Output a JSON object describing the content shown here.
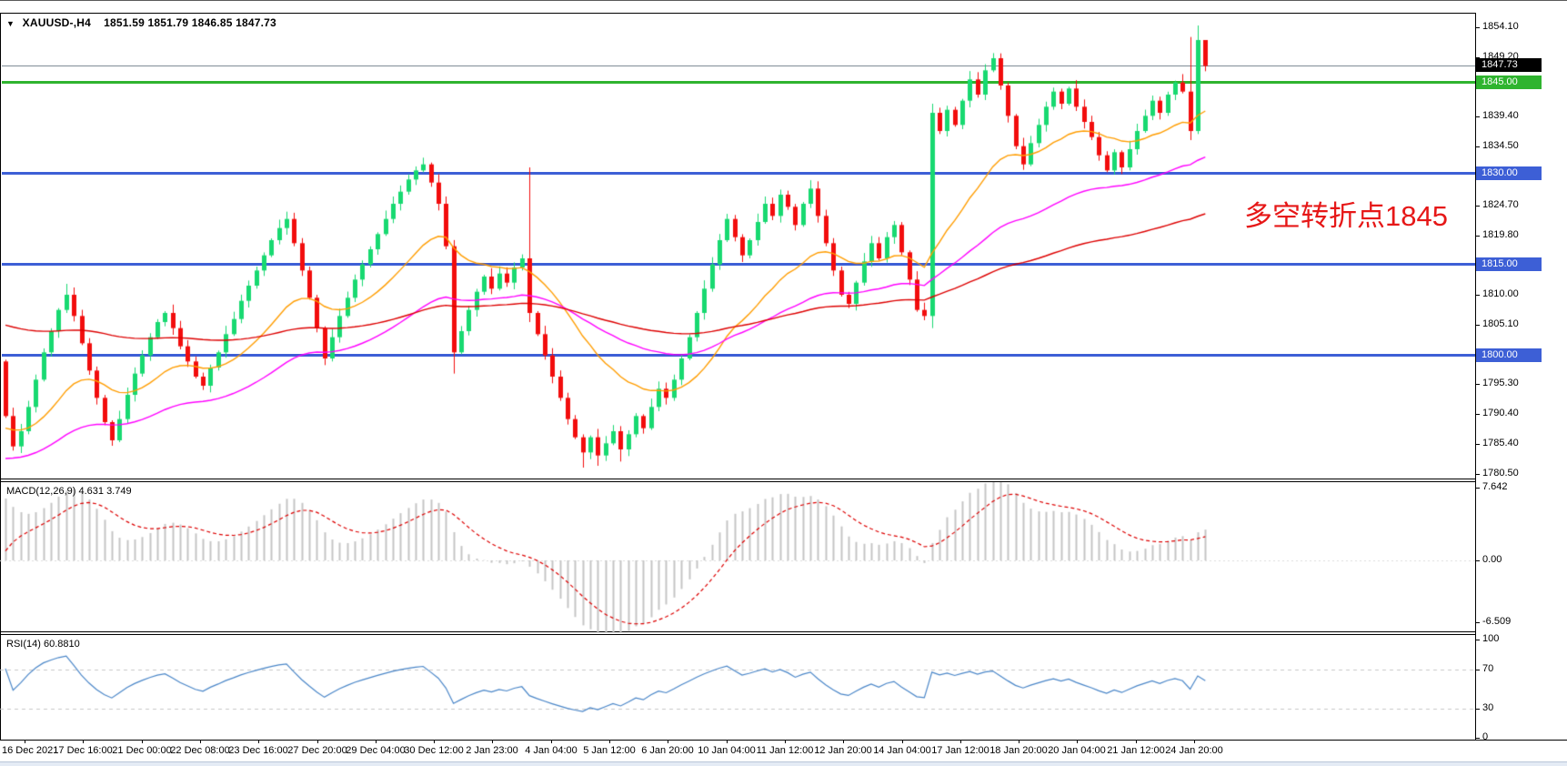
{
  "window": {
    "symbol_header": "XAUUSD-,H4",
    "ohlc_header": "1851.59 1851.79 1846.85 1847.73"
  },
  "chart_data": {
    "type": "candlestick",
    "symbol": "XAUUSD-",
    "timeframe": "H4",
    "current_bar": {
      "open": 1851.59,
      "high": 1851.79,
      "low": 1846.85,
      "close": 1847.73
    },
    "bid_price": 1847.73,
    "price_axis": {
      "min": 1780.3,
      "max": 1856.35,
      "ticks": [
        "1854.10",
        "1849.20",
        "1844.30",
        "1839.40",
        "1834.50",
        "1829.60",
        "1824.70",
        "1819.80",
        "1814.90",
        "1810.00",
        "1805.10",
        "1800.20",
        "1795.30",
        "1790.40",
        "1785.40",
        "1780.50"
      ]
    },
    "levels": [
      {
        "price": 1847.73,
        "label": "1847.73",
        "line_color": "#808c96",
        "flag_bg": "#000000",
        "thickness": 1
      },
      {
        "price": 1845.0,
        "label": "1845.00",
        "line_color": "#2fb42f",
        "flag_bg": "#2fb42f",
        "thickness": 3
      },
      {
        "price": 1830.0,
        "label": "1830.00",
        "line_color": "#3d5fd6",
        "flag_bg": "#3d5fd6",
        "thickness": 3
      },
      {
        "price": 1815.0,
        "label": "1815.00",
        "line_color": "#3d5fd6",
        "flag_bg": "#3d5fd6",
        "thickness": 3
      },
      {
        "price": 1800.0,
        "label": "1800.00",
        "line_color": "#3d5fd6",
        "flag_bg": "#3d5fd6",
        "thickness": 3
      }
    ],
    "candles": {
      "first_open": 1799.0,
      "up_color": "#18d971",
      "down_color": "#f20d0d",
      "closes": [
        1790.0,
        1785.0,
        1787.5,
        1791.5,
        1796.0,
        1800.5,
        1804.0,
        1807.5,
        1810.0,
        1806.5,
        1802.0,
        1797.5,
        1793.0,
        1789.0,
        1786.0,
        1789.5,
        1793.5,
        1797.0,
        1800.0,
        1803.0,
        1805.5,
        1807.0,
        1804.5,
        1801.5,
        1799.0,
        1796.5,
        1795.0,
        1798.0,
        1800.5,
        1803.5,
        1806.0,
        1809.0,
        1811.5,
        1814.0,
        1816.5,
        1819.0,
        1821.0,
        1822.5,
        1818.5,
        1814.0,
        1809.5,
        1804.5,
        1799.5,
        1803.0,
        1806.5,
        1809.5,
        1812.5,
        1815.0,
        1817.5,
        1820.0,
        1822.5,
        1825.0,
        1827.0,
        1829.0,
        1830.5,
        1831.5,
        1828.5,
        1825.0,
        1818.0,
        1800.5,
        1804.0,
        1807.5,
        1810.5,
        1813.0,
        1811.0,
        1813.5,
        1812.0,
        1814.5,
        1816.0,
        1807.0,
        1803.5,
        1800.0,
        1796.5,
        1793.0,
        1789.5,
        1786.5,
        1784.0,
        1786.5,
        1783.5,
        1785.5,
        1787.5,
        1784.5,
        1787.0,
        1790.0,
        1788.0,
        1791.5,
        1794.5,
        1793.0,
        1796.0,
        1799.5,
        1803.0,
        1807.0,
        1811.0,
        1815.0,
        1819.0,
        1822.5,
        1819.5,
        1816.5,
        1819.0,
        1822.0,
        1825.0,
        1823.0,
        1826.5,
        1824.5,
        1821.5,
        1825.0,
        1827.5,
        1823.0,
        1818.5,
        1814.0,
        1810.0,
        1808.5,
        1812.0,
        1815.5,
        1818.5,
        1816.0,
        1819.5,
        1821.5,
        1817.0,
        1812.5,
        1807.5,
        1806.5,
        1840.0,
        1837.0,
        1840.5,
        1838.0,
        1842.0,
        1845.5,
        1843.0,
        1847.0,
        1849.0,
        1844.5,
        1839.5,
        1834.5,
        1831.5,
        1835.0,
        1838.0,
        1841.0,
        1843.5,
        1841.5,
        1844.0,
        1841.0,
        1838.5,
        1836.0,
        1833.0,
        1830.5,
        1833.5,
        1831.0,
        1834.0,
        1837.0,
        1839.5,
        1842.0,
        1840.0,
        1843.0,
        1845.0,
        1843.5,
        1837.0,
        1852.0,
        1847.73
      ],
      "overrides": {
        "8": {
          "h": 1811.8
        },
        "55": {
          "h": 1832.6
        },
        "59": {
          "l": 1797.0
        },
        "69": {
          "h": 1831.0,
          "l": 1805.5
        },
        "76": {
          "l": 1781.5
        },
        "78": {
          "l": 1781.8
        },
        "81": {
          "l": 1782.5
        },
        "122": {
          "h": 1841.5,
          "l": 1804.5
        },
        "131": {
          "h": 1849.8
        },
        "156": {
          "h": 1852.5,
          "l": 1835.5
        },
        "157": {
          "h": 1854.4,
          "l": 1836.5
        },
        "158": {
          "h": 1851.79,
          "l": 1846.85
        }
      }
    },
    "moving_averages": [
      {
        "name": "fast",
        "period": 21,
        "color": "#ff9d00",
        "seed": 1788
      },
      {
        "name": "medium",
        "period": 55,
        "color": "#ff00ff",
        "seed": 1783
      },
      {
        "name": "slow",
        "period": 120,
        "color": "#dd0000",
        "seed": 1805
      }
    ],
    "time_labels": [
      "16 Dec 2021",
      "17 Dec 16:00",
      "21 Dec 00:00",
      "22 Dec 08:00",
      "23 Dec 16:00",
      "27 Dec 20:00",
      "29 Dec 04:00",
      "30 Dec 12:00",
      "2 Jan 23:00",
      "4 Jan 04:00",
      "5 Jan 12:00",
      "6 Jan 20:00",
      "10 Jan 04:00",
      "11 Jan 12:00",
      "12 Jan 20:00",
      "14 Jan 04:00",
      "17 Jan 12:00",
      "18 Jan 20:00",
      "20 Jan 04:00",
      "21 Jan 12:00",
      "24 Jan 20:00"
    ],
    "macd": {
      "label": "MACD(12,26,9)",
      "values_label": "4.631 3.749",
      "fast": 12,
      "slow": 26,
      "signal": 9,
      "axis_ticks": [
        "7.642",
        "0.00",
        "-6.509"
      ],
      "axis_values": [
        7.642,
        0.0,
        -6.509
      ],
      "histogram_color": "#c5c5c5",
      "signal_color": "#dd0000"
    },
    "rsi": {
      "label": "RSI(14) 60.8810",
      "period": 14,
      "current": 60.881,
      "axis_ticks": [
        "100",
        "70",
        "30",
        "0"
      ],
      "axis_values": [
        100,
        70,
        30,
        0
      ],
      "level_lines": [
        70,
        30
      ],
      "color": "#4a86c8"
    },
    "annotation": {
      "text": "多空转折点1845",
      "color": "#e61717"
    }
  }
}
